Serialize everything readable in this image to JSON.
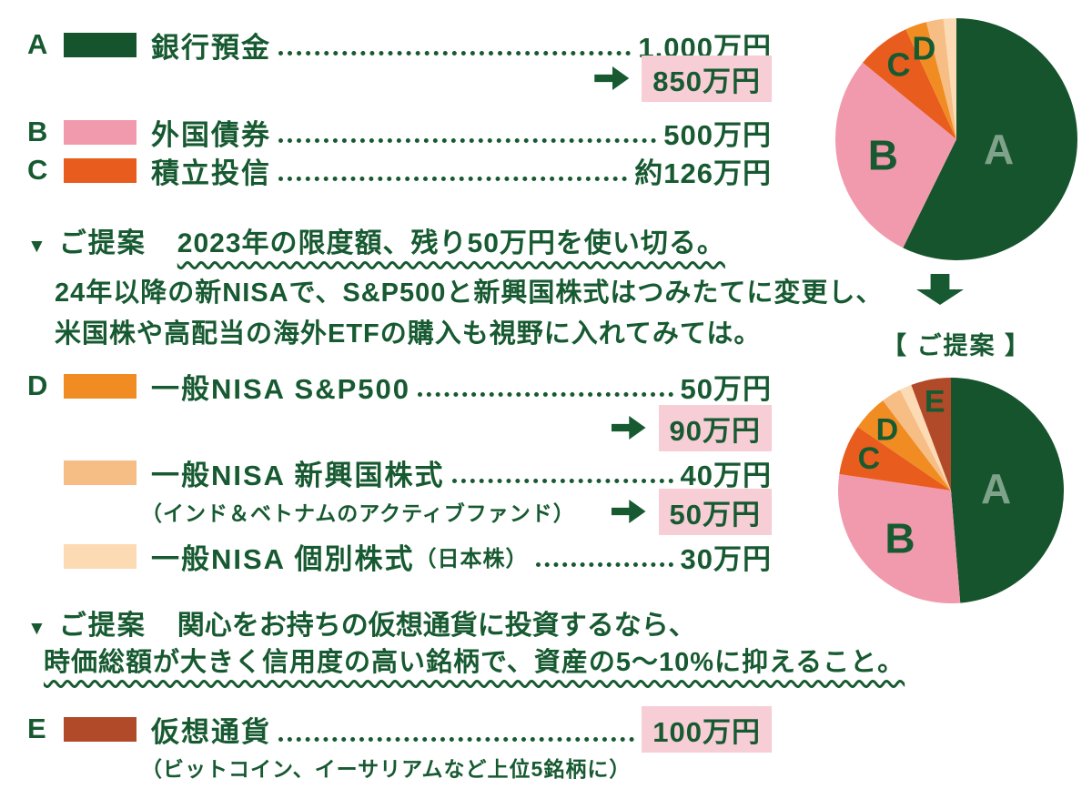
{
  "colors": {
    "text": "#175a31",
    "highlight": "#f7cdd6",
    "pie_label_muted": "#7fa28a"
  },
  "legend": {
    "bank": {
      "letter": "A",
      "label": "銀行預金",
      "value": "1,000万円",
      "new_value": "850万円",
      "color": "#15542c"
    },
    "foreign_bonds": {
      "letter": "B",
      "label": "外国債券",
      "value": "500万円",
      "color": "#f29aad"
    },
    "tsumitate_fund": {
      "letter": "C",
      "label": "積立投信",
      "value": "約126万円",
      "color": "#e85c1d"
    },
    "nisa_sp500": {
      "letter": "D",
      "label": "一般NISA S&P500",
      "value": "50万円",
      "new_value": "90万円",
      "color": "#f08c21"
    },
    "nisa_emerging": {
      "label": "一般NISA 新興国株式",
      "note": "（インド＆ベトナムのアクティブファンド）",
      "value": "40万円",
      "new_value": "50万円",
      "color": "#f6bd85"
    },
    "nisa_individual": {
      "label": "一般NISA 個別株式",
      "label_suffix": "（日本株）",
      "value": "30万円",
      "color": "#fbdab4"
    },
    "crypto": {
      "letter": "E",
      "label": "仮想通貨",
      "note": "（ビットコイン、イーサリアムなど上位5銘柄に）",
      "value": "100万円",
      "color": "#b14a28"
    }
  },
  "proposal1": {
    "marker": "▼",
    "title": "ご提案",
    "headline": "2023年の限度額、残り50万円を使い切る。",
    "body1": "24年以降の新NISAで、S&P500と新興国株式はつみたてに変更し、",
    "body2": "米国株や高配当の海外ETFの購入も視野に入れてみては。"
  },
  "proposal2": {
    "marker": "▼",
    "title": "ご提案",
    "line1": "関心をお持ちの仮想通貨に投資するなら、",
    "line2": "時価総額が大きく信用度の高い銘柄で、資産の5～10%に抑えること。"
  },
  "between_pies_label": "【 ご提案 】",
  "chart_data": [
    {
      "type": "pie",
      "position": "top",
      "unit": "万円",
      "start_angle": "top",
      "direction": "clockwise",
      "slices": [
        {
          "label": "A",
          "name": "銀行預金",
          "value": 1000,
          "color": "#15542c"
        },
        {
          "label": "B",
          "name": "外国債券",
          "value": 500,
          "color": "#f29aad"
        },
        {
          "label": "C",
          "name": "積立投信",
          "value": 126,
          "color": "#e85c1d"
        },
        {
          "label": "D",
          "name": "一般NISA S&P500",
          "value": 50,
          "color": "#f08c21"
        },
        {
          "label": "",
          "name": "一般NISA 新興国株式",
          "value": 40,
          "color": "#f6bd85"
        },
        {
          "label": "",
          "name": "一般NISA 個別株式（日本株）",
          "value": 30,
          "color": "#fbdab4"
        }
      ],
      "label_layout": {
        "A": {
          "r": 0.36,
          "size": 46,
          "color": "#7fa28a"
        },
        "B": {
          "r": 0.62,
          "size": 46,
          "color": "#175a31"
        },
        "C": {
          "r": 0.78,
          "size": 36,
          "color": "#175a31"
        },
        "D": {
          "r": 0.8,
          "size": 36,
          "color": "#175a31"
        }
      }
    },
    {
      "type": "pie",
      "position": "bottom",
      "unit": "万円",
      "start_angle": "top",
      "direction": "clockwise",
      "slices": [
        {
          "label": "A",
          "name": "銀行預金",
          "value": 850,
          "color": "#15542c"
        },
        {
          "label": "B",
          "name": "外国債券",
          "value": 500,
          "color": "#f29aad"
        },
        {
          "label": "C",
          "name": "積立投信",
          "value": 126,
          "color": "#e85c1d"
        },
        {
          "label": "D",
          "name": "一般NISA S&P500",
          "value": 90,
          "color": "#f08c21"
        },
        {
          "label": "",
          "name": "一般NISA 新興国株式",
          "value": 50,
          "color": "#f6bd85"
        },
        {
          "label": "",
          "name": "一般NISA 個別株式（日本株）",
          "value": 30,
          "color": "#fbdab4"
        },
        {
          "label": "E",
          "name": "仮想通貨",
          "value": 100,
          "color": "#b14a28"
        }
      ],
      "label_layout": {
        "A": {
          "r": 0.4,
          "size": 46,
          "color": "#7fa28a"
        },
        "B": {
          "r": 0.62,
          "size": 46,
          "color": "#175a31"
        },
        "C": {
          "r": 0.78,
          "size": 34,
          "color": "#175a31"
        },
        "D": {
          "r": 0.78,
          "size": 34,
          "color": "#175a31"
        },
        "E": {
          "r": 0.8,
          "size": 34,
          "color": "#175a31"
        }
      }
    }
  ]
}
